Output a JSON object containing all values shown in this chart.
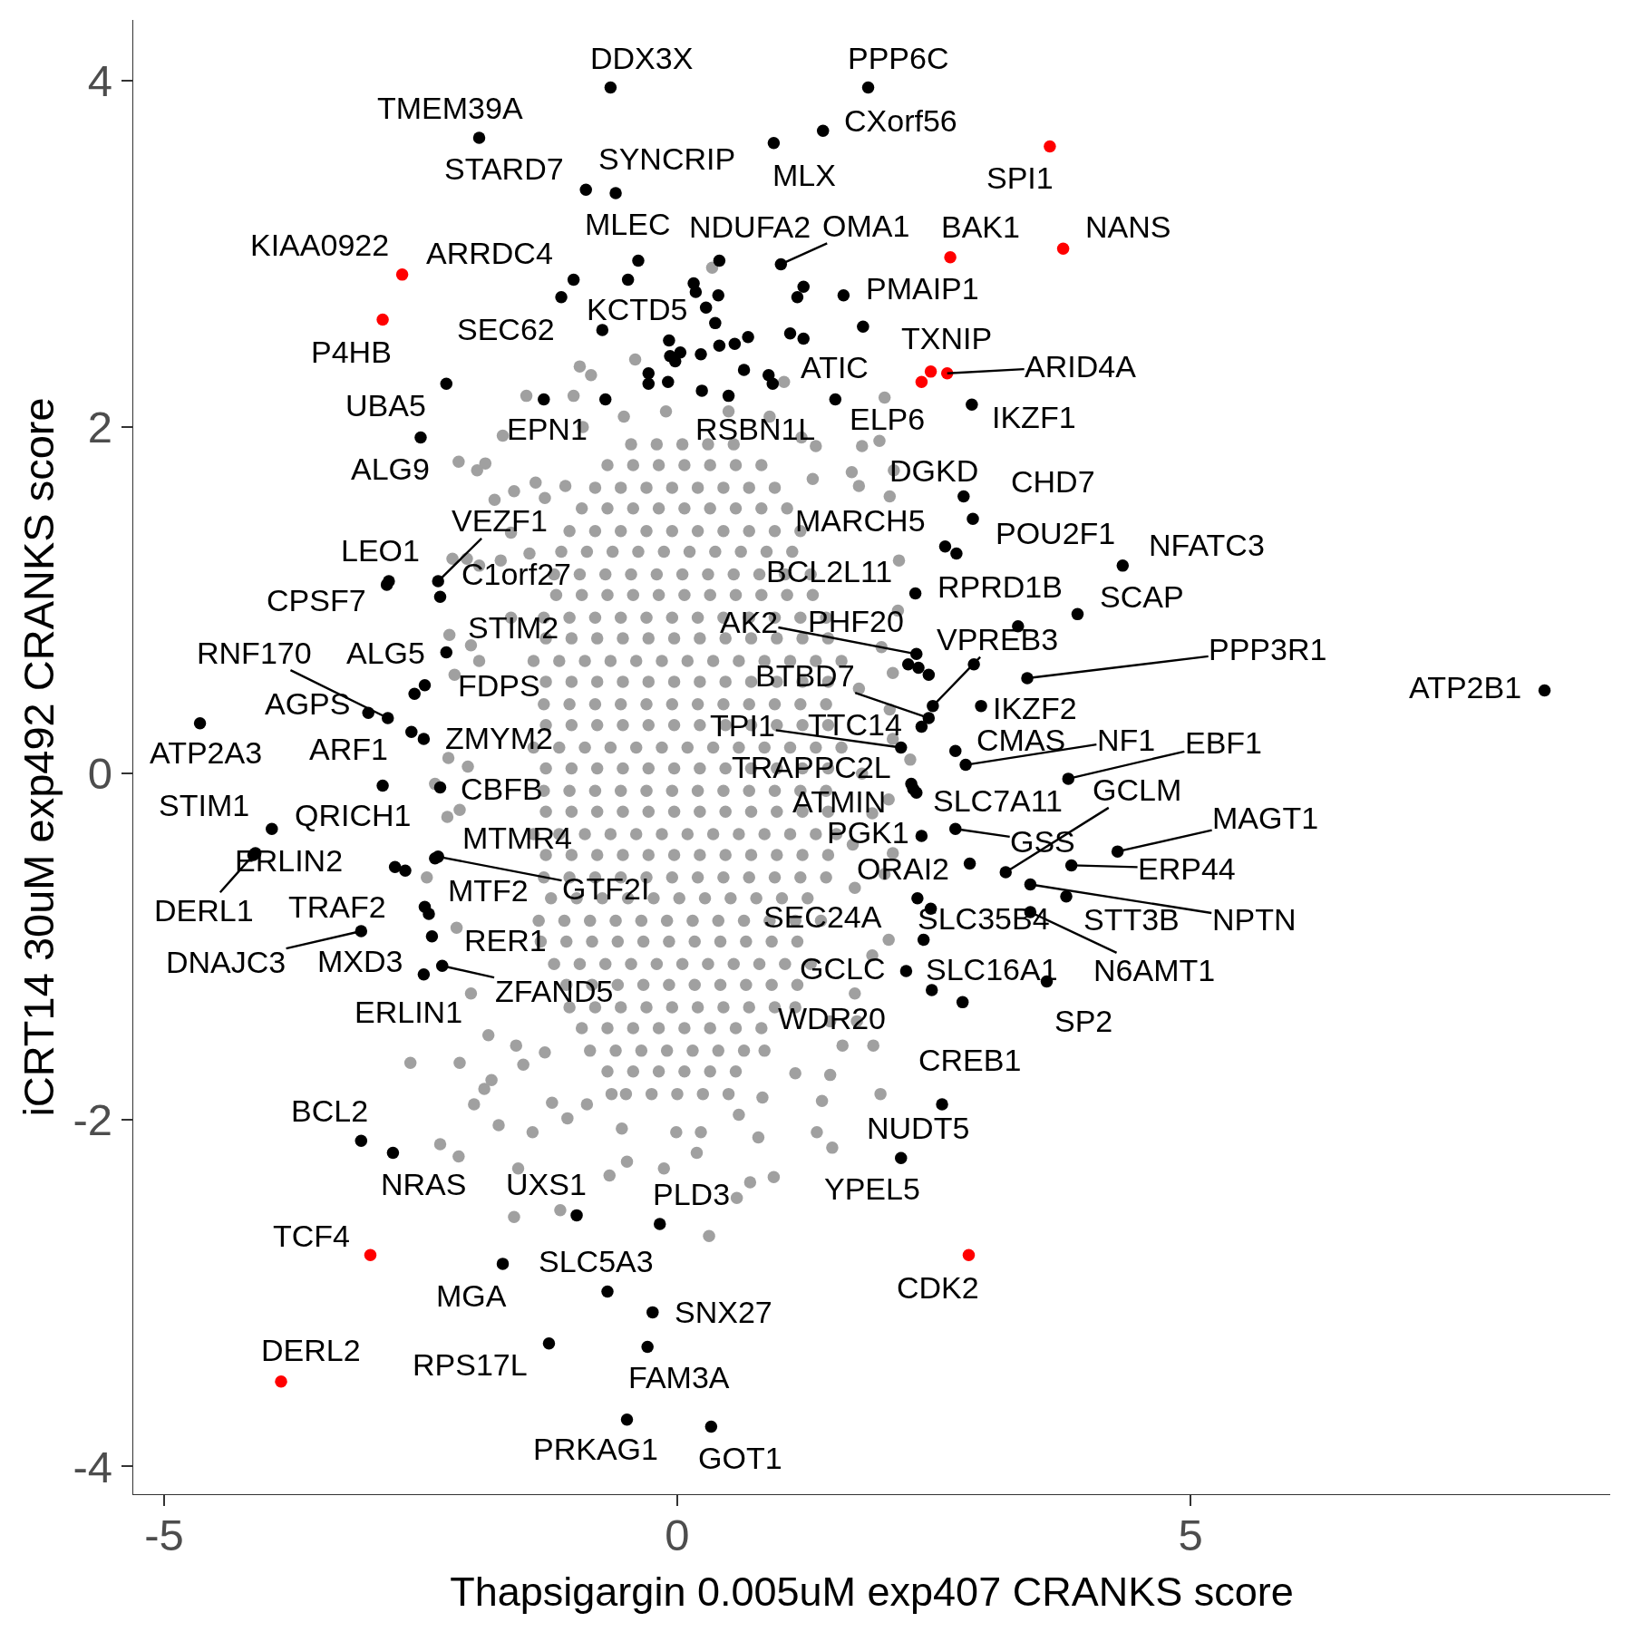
{
  "chart_data": {
    "type": "scatter",
    "xlabel": "Thapsigargin 0.005uM exp407 CRANKS score",
    "ylabel": "iCRT14 30uM exp492 CRANKS score",
    "xlim": [
      -5.3,
      9.09
    ],
    "ylim": [
      -4.16,
      4.35
    ],
    "xticks": [
      -5,
      0,
      5
    ],
    "yticks": [
      -4,
      -2,
      0,
      2,
      4
    ],
    "marker": "circle",
    "series": [
      {
        "color": "#a0a0a0",
        "x": [
          -0.45,
          -0.2,
          0.05,
          0.3,
          0.55,
          -0.8,
          -0.55,
          -0.3,
          -0.05,
          0.2,
          0.45,
          0.7,
          0.95,
          -1.05,
          -0.8,
          -0.55,
          -0.3,
          -0.05,
          0.2,
          0.45,
          0.7,
          0.95,
          1.2,
          -1.2,
          -0.95,
          -0.7,
          -0.45,
          -0.2,
          0.05,
          0.3,
          0.55,
          0.8,
          1.05,
          1.3,
          -1.3,
          -1.05,
          -0.8,
          -0.55,
          -0.3,
          -0.05,
          0.2,
          0.45,
          0.7,
          0.95,
          1.2,
          1.45,
          -1.4,
          -1.15,
          -0.9,
          -0.65,
          -0.4,
          -0.15,
          0.1,
          0.35,
          0.6,
          0.85,
          1.1,
          1.35,
          1.6,
          -1.3,
          -1.05,
          -0.8,
          -0.55,
          -0.3,
          -0.05,
          0.2,
          0.45,
          0.7,
          0.95,
          1.2,
          1.45,
          -1.4,
          -1.15,
          -0.9,
          -0.65,
          -0.4,
          -0.15,
          0.1,
          0.35,
          0.6,
          0.85,
          1.1,
          1.35,
          1.6,
          -1.3,
          -1.05,
          -0.8,
          -0.55,
          -0.3,
          -0.05,
          0.2,
          0.45,
          0.7,
          0.95,
          1.2,
          1.45,
          -1.4,
          -1.15,
          -0.9,
          -0.65,
          -0.4,
          -0.15,
          0.1,
          0.35,
          0.6,
          0.85,
          1.1,
          1.35,
          1.55,
          -1.3,
          -1.05,
          -0.8,
          -0.55,
          -0.3,
          -0.05,
          0.2,
          0.45,
          0.7,
          0.95,
          1.2,
          1.45,
          -1.35,
          -1.1,
          -0.85,
          -0.6,
          -0.35,
          -0.1,
          0.15,
          0.4,
          0.65,
          0.9,
          1.15,
          1.4,
          -1.2,
          -0.95,
          -0.7,
          -0.45,
          -0.2,
          0.05,
          0.3,
          0.55,
          0.8,
          1.05,
          1.3,
          -1.05,
          -0.8,
          -0.55,
          -0.3,
          -0.05,
          0.2,
          0.45,
          0.7,
          0.95,
          1.15,
          -0.85,
          -0.6,
          -0.35,
          -0.1,
          0.15,
          0.4,
          0.65,
          0.85,
          -0.5,
          -0.25,
          0,
          0.25,
          0.5,
          -0.95,
          -0.84,
          -1.47,
          -1.01,
          -2.13,
          -1.95,
          -1.87,
          -1.7,
          -1.59,
          -1.38,
          -1.09,
          -1.78,
          -1.29,
          -1.62,
          -1.44,
          -2.19,
          -2.05,
          -1.93,
          -1.72,
          -2.22,
          -2.01,
          -2.17,
          -1.93,
          -1.62,
          -2.23,
          -2.04,
          -2.36,
          -2.24,
          -2.12,
          -2.44,
          -2.15,
          -2.01,
          -1.84,
          -2.6,
          -2.12,
          -1.88,
          -1.81,
          -1.57,
          -1.5,
          -1.98,
          -1.74,
          -1.41,
          -1.55,
          -1.22,
          -1.07,
          -0.88,
          -2.31,
          -2.13,
          -1.59,
          -1.14,
          -0.66,
          -0.54,
          -0.64,
          -1.29,
          2.27,
          2.06,
          1.9,
          2.02,
          1.73,
          2.06,
          1.73,
          1.91,
          1.49,
          1.15,
          1.98,
          1.41,
          1.36,
          1.51,
          0.94,
          0.71,
          0.58,
          0.31,
          0.79,
          0.19,
          -0.13,
          -0.49,
          -0.01,
          0.23,
          0.6,
          0.83,
          1.49,
          1.61,
          1.75,
          1.9,
          2.02,
          1.8,
          1.97,
          1.7,
          1.77,
          2.11,
          2.07,
          1.35,
          1.32,
          1.04,
          0.34,
          -0.41,
          2.16,
          2.15,
          1.99,
          2.1,
          2.07,
          -0.52,
          -0.11,
          0.5,
          0.9,
          -0.92,
          1.21,
          -0.68,
          -0.43,
          -0.18,
          0.07,
          0.32,
          0.57,
          0.82,
          -0.93,
          -0.68,
          -0.43,
          -0.18,
          0.07,
          0.32,
          0.57,
          0.82,
          1.07,
          -1.13,
          -0.88,
          -0.63,
          -0.38,
          -0.13,
          0.12,
          0.37,
          0.62,
          0.87,
          1.12,
          -1.18,
          -0.93,
          -0.68,
          -0.43,
          -0.18,
          0.07,
          0.32,
          0.57,
          0.82,
          1.07,
          1.32,
          -1.28,
          -1.03,
          -0.78,
          -0.53,
          -0.28,
          -0.03,
          0.22,
          0.47,
          0.72,
          0.97,
          1.22,
          1.47,
          -1.28,
          -1.03,
          -0.78,
          -0.53,
          -0.28,
          -0.03,
          0.22,
          0.47,
          0.72,
          0.97,
          1.22,
          1.47,
          -1.28,
          -1.03,
          -0.78,
          -0.53,
          -0.28,
          -0.03,
          0.22,
          0.47,
          0.72,
          0.97,
          1.22,
          1.47,
          -1.28,
          -1.03,
          -0.78,
          -0.53,
          -0.28,
          -0.03,
          0.22,
          0.47,
          0.72,
          0.97,
          1.22,
          1.47,
          -1.28,
          -1.03,
          -0.78,
          -0.53,
          -0.28,
          -0.03,
          0.22,
          0.47,
          0.72,
          0.97,
          1.22,
          1.47,
          -1.28,
          -1.03,
          -0.78,
          -0.53,
          -0.28,
          -0.03,
          0.22,
          0.47,
          0.72,
          0.97,
          1.22,
          1.47,
          -1.23,
          -0.98,
          -0.73,
          -0.48,
          -0.23,
          0.02,
          0.27,
          0.52,
          0.77,
          1.02,
          1.27,
          -1.33,
          -1.08,
          -0.83,
          -0.58,
          -0.33,
          -0.08,
          0.17,
          0.42,
          0.67,
          0.92,
          1.17,
          -1.08,
          -0.83,
          -0.58,
          -0.33,
          -0.08,
          0.17,
          0.42,
          0.67,
          0.92,
          1.17,
          -0.93,
          -0.68,
          -0.43,
          -0.18,
          0.07,
          0.32,
          0.57,
          0.82,
          -0.68,
          -0.43,
          -0.18,
          0.07,
          0.32,
          0.57,
          2.1,
          2.1,
          1.77,
          1.8,
          1.71
        ],
        "values": [
          1.9,
          1.9,
          1.9,
          1.9,
          1.9,
          1.65,
          1.65,
          1.65,
          1.65,
          1.65,
          1.65,
          1.65,
          1.65,
          1.4,
          1.4,
          1.4,
          1.4,
          1.4,
          1.4,
          1.4,
          1.4,
          1.4,
          1.4,
          1.15,
          1.15,
          1.15,
          1.15,
          1.15,
          1.15,
          1.15,
          1.15,
          1.15,
          1.15,
          1.15,
          0.9,
          0.9,
          0.9,
          0.9,
          0.9,
          0.9,
          0.9,
          0.9,
          0.9,
          0.9,
          0.9,
          0.9,
          0.65,
          0.65,
          0.65,
          0.65,
          0.65,
          0.65,
          0.65,
          0.65,
          0.65,
          0.65,
          0.65,
          0.65,
          0.65,
          0.4,
          0.4,
          0.4,
          0.4,
          0.4,
          0.4,
          0.4,
          0.4,
          0.4,
          0.4,
          0.4,
          0.4,
          0.15,
          0.15,
          0.15,
          0.15,
          0.15,
          0.15,
          0.15,
          0.15,
          0.15,
          0.15,
          0.15,
          0.15,
          0.15,
          -0.1,
          -0.1,
          -0.1,
          -0.1,
          -0.1,
          -0.1,
          -0.1,
          -0.1,
          -0.1,
          -0.1,
          -0.1,
          -0.1,
          -0.35,
          -0.35,
          -0.35,
          -0.35,
          -0.35,
          -0.35,
          -0.35,
          -0.35,
          -0.35,
          -0.35,
          -0.35,
          -0.35,
          -0.35,
          -0.6,
          -0.6,
          -0.6,
          -0.6,
          -0.6,
          -0.6,
          -0.6,
          -0.6,
          -0.6,
          -0.6,
          -0.6,
          -0.6,
          -0.85,
          -0.85,
          -0.85,
          -0.85,
          -0.85,
          -0.85,
          -0.85,
          -0.85,
          -0.85,
          -0.85,
          -0.85,
          -0.85,
          -1.1,
          -1.1,
          -1.1,
          -1.1,
          -1.1,
          -1.1,
          -1.1,
          -1.1,
          -1.1,
          -1.1,
          -1.1,
          -1.35,
          -1.35,
          -1.35,
          -1.35,
          -1.35,
          -1.35,
          -1.35,
          -1.35,
          -1.35,
          -1.35,
          -1.6,
          -1.6,
          -1.6,
          -1.6,
          -1.6,
          -1.6,
          -1.6,
          -1.6,
          -1.85,
          -1.85,
          -1.85,
          -1.85,
          -1.85,
          2.35,
          2.3,
          2.18,
          2.18,
          1.8,
          1.75,
          1.79,
          1.95,
          1.63,
          1.68,
          1.66,
          1.58,
          1.59,
          1.39,
          1.27,
          1.24,
          1.24,
          1.2,
          1.23,
          0.8,
          0.74,
          0.57,
          0.65,
          0.9,
          0.09,
          0.04,
          -0.06,
          -0.25,
          -0.21,
          -0.6,
          -0.89,
          -1.27,
          -1.51,
          -1.67,
          -1.67,
          -1.82,
          -1.77,
          -1.57,
          -1.68,
          -1.91,
          -2.03,
          -2.07,
          -2.28,
          -1.9,
          -1.99,
          -1.91,
          -2.14,
          -2.21,
          -2.56,
          -2.52,
          -2.32,
          -2.05,
          -1.85,
          -1.61,
          0.08,
          -0.15,
          -0.23,
          -0.58,
          -0.66,
          -0.96,
          -1.27,
          -1.57,
          -1.74,
          -1.73,
          -1.85,
          -1.89,
          -2.07,
          -2.16,
          -2.33,
          -2.36,
          -2.45,
          -2.67,
          -2.1,
          -2.19,
          -2.28,
          -2.24,
          -2.07,
          -2.07,
          -1.97,
          -1.87,
          -1.43,
          -1.57,
          -1.43,
          -1.05,
          2.17,
          1.89,
          1.92,
          1.74,
          1.66,
          1.75,
          1.6,
          1.89,
          1.7,
          2.26,
          2.92,
          2.39,
          1.23,
          0.94,
          0.73,
          0.58,
          0.37,
          2.06,
          2.09,
          2.09,
          2.06,
          2.0,
          1.94,
          1.78,
          1.78,
          1.78,
          1.78,
          1.78,
          1.78,
          1.78,
          1.53,
          1.53,
          1.53,
          1.53,
          1.53,
          1.53,
          1.53,
          1.53,
          1.53,
          1.28,
          1.28,
          1.28,
          1.28,
          1.28,
          1.28,
          1.28,
          1.28,
          1.28,
          1.28,
          1.03,
          1.03,
          1.03,
          1.03,
          1.03,
          1.03,
          1.03,
          1.03,
          1.03,
          1.03,
          1.03,
          0.78,
          0.78,
          0.78,
          0.78,
          0.78,
          0.78,
          0.78,
          0.78,
          0.78,
          0.78,
          0.78,
          0.78,
          0.53,
          0.53,
          0.53,
          0.53,
          0.53,
          0.53,
          0.53,
          0.53,
          0.53,
          0.53,
          0.53,
          0.53,
          0.28,
          0.28,
          0.28,
          0.28,
          0.28,
          0.28,
          0.28,
          0.28,
          0.28,
          0.28,
          0.28,
          0.28,
          0.03,
          0.03,
          0.03,
          0.03,
          0.03,
          0.03,
          0.03,
          0.03,
          0.03,
          0.03,
          0.03,
          0.03,
          -0.22,
          -0.22,
          -0.22,
          -0.22,
          -0.22,
          -0.22,
          -0.22,
          -0.22,
          -0.22,
          -0.22,
          -0.22,
          -0.22,
          -0.47,
          -0.47,
          -0.47,
          -0.47,
          -0.47,
          -0.47,
          -0.47,
          -0.47,
          -0.47,
          -0.47,
          -0.47,
          -0.47,
          -0.72,
          -0.72,
          -0.72,
          -0.72,
          -0.72,
          -0.72,
          -0.72,
          -0.72,
          -0.72,
          -0.72,
          -0.72,
          -0.97,
          -0.97,
          -0.97,
          -0.97,
          -0.97,
          -0.97,
          -0.97,
          -0.97,
          -0.97,
          -0.97,
          -0.97,
          -1.22,
          -1.22,
          -1.22,
          -1.22,
          -1.22,
          -1.22,
          -1.22,
          -1.22,
          -1.22,
          -1.22,
          -1.47,
          -1.47,
          -1.47,
          -1.47,
          -1.47,
          -1.47,
          -1.47,
          -1.47,
          -1.72,
          -1.72,
          -1.72,
          -1.72,
          -1.72,
          -1.72,
          0.2,
          -0.46,
          0.49,
          0.0,
          -0.41
        ]
      },
      {
        "color": "#000000",
        "x": [
          -0.65,
          1.86,
          -1.93,
          1.42,
          0.94,
          -0.89,
          -0.6,
          -1.01,
          -0.38,
          0.41,
          1.01,
          1.62,
          -1.13,
          -0.73,
          1.23,
          -2.25,
          -1.3,
          0.5,
          1.54,
          2.87,
          -2.5,
          2.79,
          2.88,
          2.61,
          2.72,
          4.34,
          -2.33,
          -2.81,
          -2.31,
          2.32,
          3.32,
          3.9,
          -2.83,
          -2.25,
          2.33,
          2.25,
          2.49,
          3.41,
          -2.82,
          -2.56,
          -2.46,
          2.45,
          2.96,
          8.45,
          -3.01,
          2.18,
          2.38,
          2.71,
          2.81,
          3.81,
          -4.65,
          -2.87,
          -2.47,
          2.28,
          2.3,
          2.33,
          3.2,
          -2.31,
          -3.95,
          -2.75,
          2.38,
          2.71,
          4.29,
          -2.36,
          -4.11,
          2.85,
          3.84,
          -4.13,
          -2.46,
          -2.33,
          2.34,
          2.47,
          3.79,
          3.44,
          -2.65,
          -3.08,
          -2.42,
          -2.39,
          3.44,
          2.23,
          2.4,
          -2.29,
          -2.47,
          2.48,
          3.6,
          2.78,
          -3.08,
          2.58,
          -2.77,
          -0.98,
          -0.17,
          2.18,
          -0.68,
          -1.7,
          -0.24,
          -1.25,
          -0.29,
          -0.49,
          0.33,
          -0.48,
          -0.7,
          0.16,
          0.18,
          0.4,
          1.23,
          1.17,
          0.28,
          0.37,
          1.81,
          -0.08,
          1.1,
          0.56,
          0.69,
          0.41,
          0.23,
          -0.07,
          0.03,
          -0.02,
          0.65,
          0.89,
          0.93,
          -0.28,
          -0.28,
          -0.09,
          0.24,
          -2.59,
          2.89,
          2.35,
          2.45
        ],
        "values": [
          3.96,
          3.96,
          3.67,
          3.71,
          3.64,
          3.37,
          3.35,
          2.85,
          2.96,
          2.96,
          2.94,
          2.76,
          2.75,
          2.56,
          2.51,
          2.25,
          2.16,
          2.18,
          2.16,
          2.13,
          1.94,
          1.6,
          1.47,
          1.31,
          1.27,
          1.2,
          1.11,
          1.11,
          1.02,
          1.04,
          0.85,
          0.92,
          1.09,
          0.7,
          0.69,
          0.63,
          0.39,
          0.55,
          0.32,
          0.46,
          0.51,
          0.32,
          0.39,
          0.48,
          0.35,
          0.15,
          0.27,
          0.13,
          0.05,
          -0.03,
          0.29,
          -0.07,
          0.2,
          -0.06,
          -0.09,
          -0.11,
          -0.57,
          -0.08,
          -0.32,
          -0.54,
          -0.36,
          -0.32,
          -0.45,
          -0.49,
          -0.46,
          -0.52,
          -0.53,
          -0.47,
          -0.77,
          -0.48,
          -0.72,
          -0.78,
          -0.71,
          -0.64,
          -0.56,
          -0.91,
          -0.81,
          -0.94,
          -0.8,
          -1.14,
          -0.96,
          -1.11,
          -1.16,
          -1.25,
          -1.2,
          -1.32,
          -2.12,
          -1.91,
          -2.19,
          -2.55,
          -2.6,
          -2.22,
          -2.99,
          -2.83,
          -3.11,
          -3.29,
          -3.31,
          -3.73,
          -3.77,
          2.85,
          2.16,
          2.83,
          2.78,
          2.76,
          2.81,
          2.75,
          2.69,
          2.6,
          2.58,
          2.5,
          2.54,
          2.48,
          2.52,
          2.47,
          2.42,
          2.41,
          2.43,
          2.38,
          2.33,
          2.3,
          2.25,
          2.31,
          2.25,
          2.26,
          2.21,
          0.24,
          0.63,
          0.61,
          0.57
        ]
      },
      {
        "color": "#ff0000",
        "x": [
          3.63,
          -2.68,
          2.66,
          3.76,
          -2.87,
          2.47,
          2.63,
          2.38,
          -2.99,
          2.84,
          -3.86
        ],
        "values": [
          3.62,
          2.88,
          2.98,
          3.03,
          2.62,
          2.32,
          2.31,
          2.26,
          -2.78,
          -2.78,
          -3.51
        ]
      }
    ],
    "annotations": [
      {
        "text": "DDX3X",
        "x": -0.65,
        "y": 3.96
      },
      {
        "text": "PPP6C",
        "x": 1.86,
        "y": 3.96
      },
      {
        "text": "TMEM39A",
        "x": -1.93,
        "y": 3.67
      },
      {
        "text": "CXorf56",
        "x": 1.42,
        "y": 3.71
      },
      {
        "text": "MLX",
        "x": 0.94,
        "y": 3.64
      },
      {
        "text": "SPI1",
        "x": 3.63,
        "y": 3.62
      },
      {
        "text": "STARD7",
        "x": -0.89,
        "y": 3.37
      },
      {
        "text": "SYNCRIP",
        "x": -0.6,
        "y": 3.35
      },
      {
        "text": "KIAA0922",
        "x": -2.68,
        "y": 2.88
      },
      {
        "text": "ARRDC4",
        "x": -1.01,
        "y": 2.85
      },
      {
        "text": "MLEC",
        "x": -0.38,
        "y": 2.96
      },
      {
        "text": "NDUFA2",
        "x": 0.41,
        "y": 2.96
      },
      {
        "text": "OMA1",
        "x": 1.01,
        "y": 2.94
      },
      {
        "text": "BAK1",
        "x": 2.66,
        "y": 2.98
      },
      {
        "text": "NANS",
        "x": 3.76,
        "y": 3.03
      },
      {
        "text": "PMAIP1",
        "x": 1.62,
        "y": 2.76
      },
      {
        "text": "SEC62",
        "x": -1.13,
        "y": 2.75
      },
      {
        "text": "KCTD5",
        "x": -0.73,
        "y": 2.56
      },
      {
        "text": "P4HB",
        "x": -2.87,
        "y": 2.62
      },
      {
        "text": "TXNIP",
        "x": 2.47,
        "y": 2.32
      },
      {
        "text": "ARID4A",
        "x": 2.63,
        "y": 2.31
      },
      {
        "text": "ATIC",
        "x": 1.23,
        "y": 2.51
      },
      {
        "text": "UBA5",
        "x": -2.25,
        "y": 2.25
      },
      {
        "text": "EPN1",
        "x": -1.3,
        "y": 2.16
      },
      {
        "text": "RSBN1L",
        "x": 0.5,
        "y": 2.18
      },
      {
        "text": "ELP6",
        "x": 1.54,
        "y": 2.16
      },
      {
        "text": "IKZF1",
        "x": 2.87,
        "y": 2.13
      },
      {
        "text": "ALG9",
        "x": -2.5,
        "y": 1.94
      },
      {
        "text": "DGKD",
        "x": 2.79,
        "y": 1.6
      },
      {
        "text": "CHD7",
        "x": 2.88,
        "y": 1.47
      },
      {
        "text": "MARCH5",
        "x": 2.61,
        "y": 1.31
      },
      {
        "text": "POU2F1",
        "x": 2.72,
        "y": 1.27
      },
      {
        "text": "NFATC3",
        "x": 4.34,
        "y": 1.2
      },
      {
        "text": "VEZF1",
        "x": -2.33,
        "y": 1.11
      },
      {
        "text": "LEO1",
        "x": -2.81,
        "y": 1.11
      },
      {
        "text": "C1orf27",
        "x": -2.31,
        "y": 1.02
      },
      {
        "text": "BCL2L11",
        "x": 2.32,
        "y": 1.04
      },
      {
        "text": "RPRD1B",
        "x": 3.32,
        "y": 0.85
      },
      {
        "text": "SCAP",
        "x": 3.9,
        "y": 0.92
      },
      {
        "text": "CPSF7",
        "x": -2.83,
        "y": 1.09
      },
      {
        "text": "STIM2",
        "x": -2.25,
        "y": 0.7
      },
      {
        "text": "AK2",
        "x": 2.33,
        "y": 0.69
      },
      {
        "text": "PHF20",
        "x": 2.25,
        "y": 0.63
      },
      {
        "text": "VPREB3",
        "x": 2.49,
        "y": 0.39
      },
      {
        "text": "PPP3R1",
        "x": 3.41,
        "y": 0.55
      },
      {
        "text": "RNF170",
        "x": -2.82,
        "y": 0.32
      },
      {
        "text": "ALG5",
        "x": -2.56,
        "y": 0.46
      },
      {
        "text": "FDPS",
        "x": -2.46,
        "y": 0.51
      },
      {
        "text": "BTBD7",
        "x": 2.45,
        "y": 0.32
      },
      {
        "text": "IKZF2",
        "x": 2.96,
        "y": 0.39
      },
      {
        "text": "ATP2B1",
        "x": 8.45,
        "y": 0.48
      },
      {
        "text": "AGPS",
        "x": -3.01,
        "y": 0.35
      },
      {
        "text": "TPI1",
        "x": 2.18,
        "y": 0.15
      },
      {
        "text": "TTC14",
        "x": 2.38,
        "y": 0.27
      },
      {
        "text": "CMAS",
        "x": 2.71,
        "y": 0.13
      },
      {
        "text": "NF1",
        "x": 2.81,
        "y": 0.05
      },
      {
        "text": "EBF1",
        "x": 3.81,
        "y": -0.03
      },
      {
        "text": "ATP2A3",
        "x": -4.65,
        "y": 0.29
      },
      {
        "text": "ARF1",
        "x": -2.87,
        "y": -0.07
      },
      {
        "text": "ZMYM2",
        "x": -2.47,
        "y": 0.2
      },
      {
        "text": "TRAPPC2L",
        "x": 2.28,
        "y": -0.06
      },
      {
        "text": "ATMIN",
        "x": 2.3,
        "y": -0.09
      },
      {
        "text": "SLC7A11",
        "x": 2.33,
        "y": -0.11
      },
      {
        "text": "GCLM",
        "x": 3.2,
        "y": -0.57
      },
      {
        "text": "CBFB",
        "x": -2.31,
        "y": -0.08
      },
      {
        "text": "STIM1",
        "x": -3.95,
        "y": -0.32
      },
      {
        "text": "QRICH1",
        "x": -2.75,
        "y": -0.54
      },
      {
        "text": "PGK1",
        "x": 2.38,
        "y": -0.36
      },
      {
        "text": "GSS",
        "x": 2.71,
        "y": -0.32
      },
      {
        "text": "MAGT1",
        "x": 4.29,
        "y": -0.45
      },
      {
        "text": "MTMR4",
        "x": -2.36,
        "y": -0.49
      },
      {
        "text": "ERLIN2",
        "x": -4.11,
        "y": -0.46
      },
      {
        "text": "ORAI2",
        "x": 2.85,
        "y": -0.52
      },
      {
        "text": "ERP44",
        "x": 3.84,
        "y": -0.53
      },
      {
        "text": "DERL1",
        "x": -4.13,
        "y": -0.47
      },
      {
        "text": "MTF2",
        "x": -2.46,
        "y": -0.77
      },
      {
        "text": "GTF2I",
        "x": -2.33,
        "y": -0.48
      },
      {
        "text": "SEC24A",
        "x": 2.34,
        "y": -0.72
      },
      {
        "text": "SLC35B4",
        "x": 2.47,
        "y": -0.78
      },
      {
        "text": "STT3B",
        "x": 3.79,
        "y": -0.71
      },
      {
        "text": "NPTN",
        "x": 3.44,
        "y": -0.64
      },
      {
        "text": "TRAF2",
        "x": -2.65,
        "y": -0.56
      },
      {
        "text": "DNAJC3",
        "x": -3.08,
        "y": -0.91
      },
      {
        "text": "MXD3",
        "x": -2.42,
        "y": -0.81
      },
      {
        "text": "RER1",
        "x": -2.39,
        "y": -0.94
      },
      {
        "text": "N6AMT1",
        "x": 3.44,
        "y": -0.8
      },
      {
        "text": "GCLC",
        "x": 2.23,
        "y": -1.14
      },
      {
        "text": "SLC16A1",
        "x": 2.4,
        "y": -0.96
      },
      {
        "text": "ZFAND5",
        "x": -2.29,
        "y": -1.11
      },
      {
        "text": "ERLIN1",
        "x": -2.47,
        "y": -1.16
      },
      {
        "text": "WDR20",
        "x": 2.48,
        "y": -1.25
      },
      {
        "text": "SP2",
        "x": 3.6,
        "y": -1.2
      },
      {
        "text": "CREB1",
        "x": 2.78,
        "y": -1.32
      },
      {
        "text": "BCL2",
        "x": -3.08,
        "y": -2.12
      },
      {
        "text": "NUDT5",
        "x": 2.58,
        "y": -1.91
      },
      {
        "text": "NRAS",
        "x": -2.77,
        "y": -2.19
      },
      {
        "text": "UXS1",
        "x": -0.98,
        "y": -2.55
      },
      {
        "text": "PLD3",
        "x": -0.17,
        "y": -2.6
      },
      {
        "text": "YPEL5",
        "x": 2.18,
        "y": -2.22
      },
      {
        "text": "TCF4",
        "x": -2.99,
        "y": -2.78
      },
      {
        "text": "SLC5A3",
        "x": -0.68,
        "y": -2.99
      },
      {
        "text": "CDK2",
        "x": 2.84,
        "y": -2.78
      },
      {
        "text": "MGA",
        "x": -1.7,
        "y": -2.83
      },
      {
        "text": "SNX27",
        "x": -0.24,
        "y": -3.11
      },
      {
        "text": "DERL2",
        "x": -3.86,
        "y": -3.51
      },
      {
        "text": "RPS17L",
        "x": -1.25,
        "y": -3.29
      },
      {
        "text": "FAM3A",
        "x": -0.29,
        "y": -3.31
      },
      {
        "text": "PRKAG1",
        "x": -0.49,
        "y": -3.73
      },
      {
        "text": "GOT1",
        "x": 0.33,
        "y": -3.77
      }
    ]
  }
}
